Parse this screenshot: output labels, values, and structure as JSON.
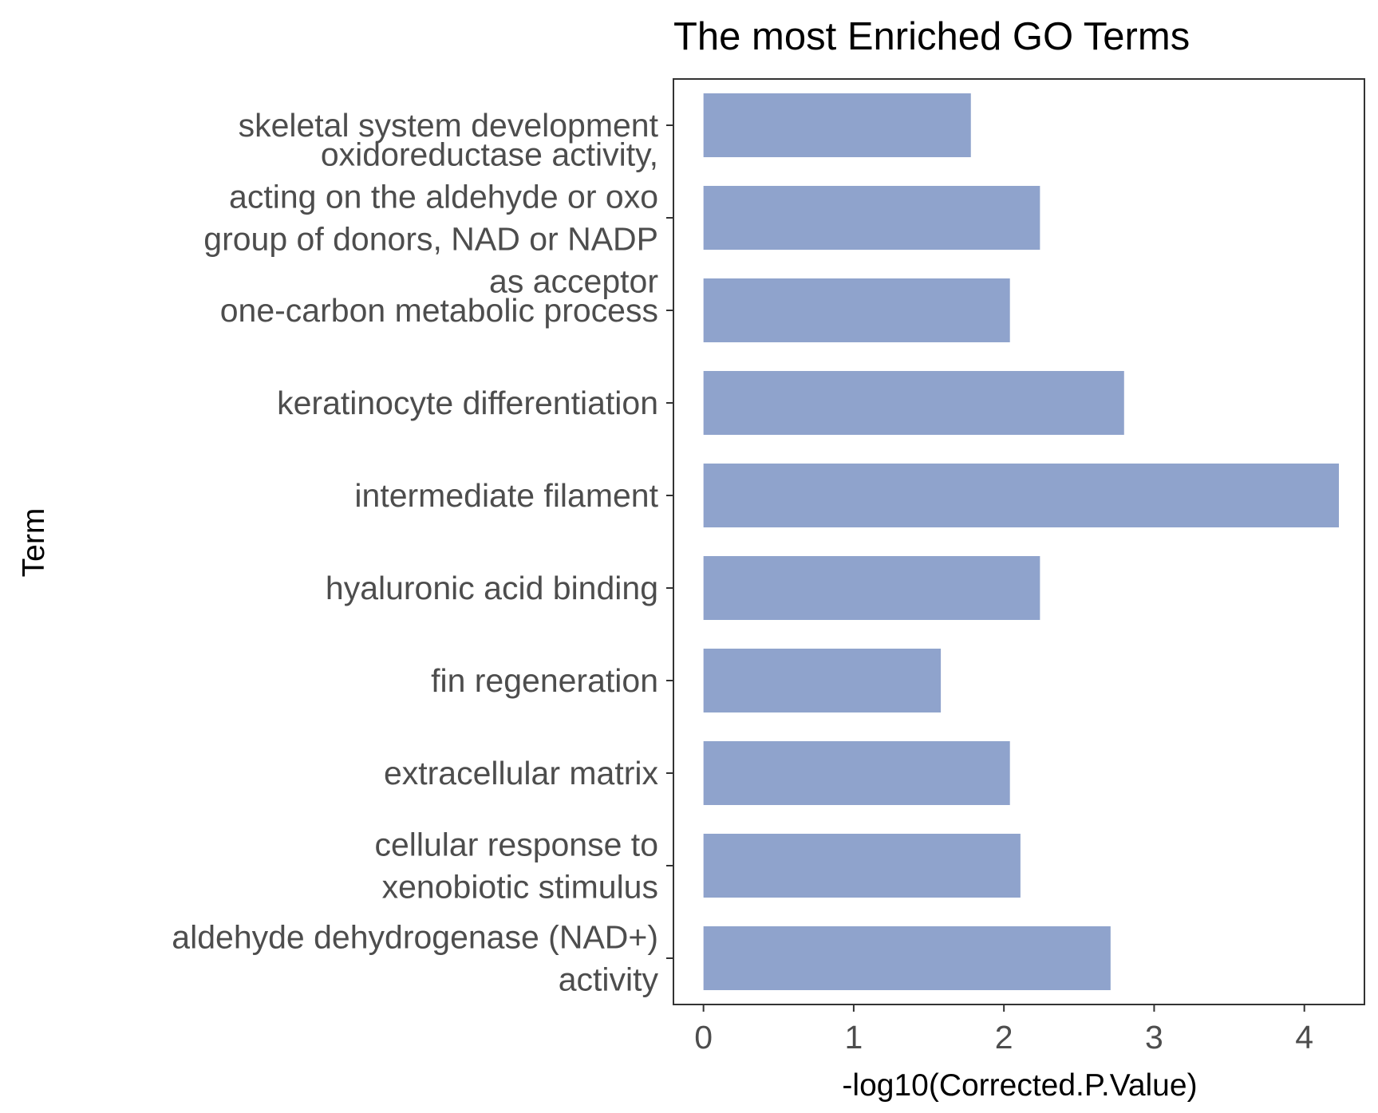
{
  "chart_data": {
    "type": "bar",
    "orientation": "horizontal",
    "title": "The most Enriched GO Terms",
    "xlabel": "-log10(Corrected.P.Value)",
    "ylabel": "Term",
    "xlim": [
      -0.2,
      4.4
    ],
    "x_ticks": [
      "0",
      "1",
      "2",
      "3",
      "4"
    ],
    "bar_color": "#8fa3cc",
    "categories": [
      {
        "label": "skeletal system development",
        "lines": [
          "skeletal system development"
        ],
        "value": 1.78
      },
      {
        "label": "oxidoreductase activity, acting on the aldehyde or oxo group of donors, NAD or NADP as acceptor",
        "lines": [
          "oxidoreductase activity,",
          "acting on the aldehyde or oxo",
          "group of donors, NAD or NADP",
          "as acceptor"
        ],
        "value": 2.24
      },
      {
        "label": "one-carbon metabolic process",
        "lines": [
          "one-carbon metabolic process"
        ],
        "value": 2.04
      },
      {
        "label": "keratinocyte differentiation",
        "lines": [
          "keratinocyte differentiation"
        ],
        "value": 2.8
      },
      {
        "label": "intermediate filament",
        "lines": [
          "intermediate filament"
        ],
        "value": 4.23
      },
      {
        "label": "hyaluronic acid binding",
        "lines": [
          "hyaluronic acid binding"
        ],
        "value": 2.24
      },
      {
        "label": "fin regeneration",
        "lines": [
          "fin regeneration"
        ],
        "value": 1.58
      },
      {
        "label": "extracellular matrix",
        "lines": [
          "extracellular matrix"
        ],
        "value": 2.04
      },
      {
        "label": "cellular response to xenobiotic stimulus",
        "lines": [
          "cellular response to",
          "xenobiotic stimulus"
        ],
        "value": 2.11
      },
      {
        "label": "aldehyde dehydrogenase (NAD+) activity",
        "lines": [
          "aldehyde dehydrogenase (NAD+)",
          "activity"
        ],
        "value": 2.71
      }
    ],
    "grid": false,
    "legend": "none"
  }
}
